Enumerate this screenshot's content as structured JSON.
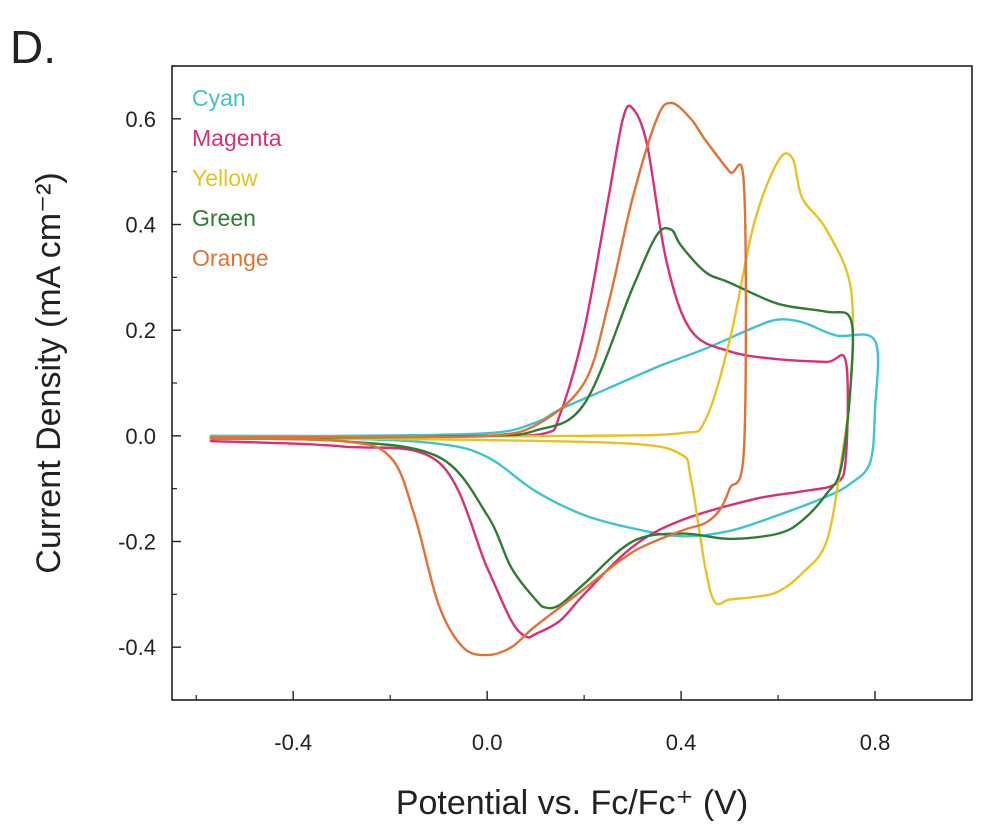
{
  "panel_label": "D.",
  "chart_data": {
    "type": "line",
    "title": "",
    "xlabel": "Potential vs. Fc/Fc⁺ (V)",
    "ylabel": "Current Density (mA cm⁻²)",
    "xlim": [
      -0.65,
      1.0
    ],
    "ylim": [
      -0.5,
      0.7
    ],
    "xticks": [
      -0.4,
      0.0,
      0.4,
      0.8
    ],
    "xtick_labels": [
      "-0.4",
      "0.0",
      "0.4",
      "0.8"
    ],
    "yticks": [
      -0.4,
      -0.2,
      0.0,
      0.2,
      0.4,
      0.6
    ],
    "ytick_labels": [
      "-0.4",
      "-0.2",
      "0.0",
      "0.2",
      "0.4",
      "0.6"
    ],
    "grid": false,
    "legend_position": "top-left",
    "series": [
      {
        "name": "Cyan",
        "color": "#3fc4cf",
        "x": [
          -0.57,
          -0.3,
          0.0,
          0.1,
          0.15,
          0.25,
          0.35,
          0.45,
          0.55,
          0.6,
          0.65,
          0.72,
          0.8,
          0.8,
          0.79,
          0.75,
          0.7,
          0.6,
          0.5,
          0.4,
          0.3,
          0.2,
          0.1,
          0.0,
          -0.1,
          -0.3,
          -0.57
        ],
        "y": [
          0.0,
          0.0,
          0.005,
          0.025,
          0.05,
          0.09,
          0.13,
          0.165,
          0.205,
          0.22,
          0.215,
          0.19,
          0.18,
          0.05,
          -0.05,
          -0.09,
          -0.115,
          -0.15,
          -0.18,
          -0.19,
          -0.175,
          -0.15,
          -0.105,
          -0.04,
          -0.015,
          -0.005,
          -0.005
        ]
      },
      {
        "name": "Magenta",
        "color": "#d6307a",
        "x": [
          -0.57,
          -0.3,
          0.0,
          0.12,
          0.15,
          0.2,
          0.25,
          0.28,
          0.3,
          0.33,
          0.37,
          0.42,
          0.5,
          0.6,
          0.7,
          0.74,
          0.74,
          0.72,
          0.65,
          0.55,
          0.4,
          0.3,
          0.2,
          0.15,
          0.1,
          0.08,
          0.05,
          0.0,
          -0.1,
          -0.3,
          -0.57
        ],
        "y": [
          -0.005,
          -0.003,
          0.0,
          0.005,
          0.04,
          0.2,
          0.45,
          0.6,
          0.62,
          0.55,
          0.33,
          0.2,
          0.16,
          0.145,
          0.14,
          0.14,
          -0.04,
          -0.09,
          -0.105,
          -0.12,
          -0.16,
          -0.21,
          -0.3,
          -0.35,
          -0.375,
          -0.38,
          -0.35,
          -0.25,
          -0.05,
          -0.02,
          -0.01
        ]
      },
      {
        "name": "Yellow",
        "color": "#e8c224",
        "x": [
          -0.57,
          -0.2,
          0.2,
          0.4,
          0.45,
          0.5,
          0.55,
          0.6,
          0.63,
          0.65,
          0.7,
          0.75,
          0.75,
          0.73,
          0.7,
          0.65,
          0.6,
          0.55,
          0.5,
          0.47,
          0.45,
          0.42,
          0.4,
          0.3,
          0.0,
          -0.3,
          -0.57
        ],
        "y": [
          -0.003,
          -0.002,
          0.0,
          0.005,
          0.03,
          0.18,
          0.4,
          0.52,
          0.525,
          0.45,
          0.39,
          0.28,
          0.1,
          -0.05,
          -0.2,
          -0.26,
          -0.295,
          -0.305,
          -0.31,
          -0.315,
          -0.25,
          -0.08,
          -0.035,
          -0.015,
          -0.008,
          -0.005,
          -0.003
        ]
      },
      {
        "name": "Green",
        "color": "#2f7d33",
        "x": [
          -0.57,
          -0.3,
          0.0,
          0.1,
          0.2,
          0.3,
          0.35,
          0.38,
          0.4,
          0.45,
          0.5,
          0.6,
          0.7,
          0.75,
          0.75,
          0.73,
          0.7,
          0.65,
          0.6,
          0.5,
          0.4,
          0.3,
          0.2,
          0.15,
          0.12,
          0.1,
          0.05,
          0.0,
          -0.1,
          -0.3,
          -0.57
        ],
        "y": [
          -0.005,
          -0.003,
          0.0,
          0.01,
          0.06,
          0.28,
          0.38,
          0.39,
          0.36,
          0.31,
          0.29,
          0.25,
          0.235,
          0.22,
          0.1,
          -0.06,
          -0.11,
          -0.16,
          -0.185,
          -0.195,
          -0.185,
          -0.2,
          -0.28,
          -0.32,
          -0.325,
          -0.31,
          -0.25,
          -0.15,
          -0.04,
          -0.01,
          -0.005
        ]
      },
      {
        "name": "Orange",
        "color": "#e07236",
        "x": [
          -0.57,
          -0.2,
          0.0,
          0.1,
          0.2,
          0.25,
          0.3,
          0.35,
          0.38,
          0.42,
          0.45,
          0.5,
          0.53,
          0.53,
          0.5,
          0.48,
          0.45,
          0.4,
          0.3,
          0.2,
          0.1,
          0.05,
          0.0,
          -0.05,
          -0.1,
          -0.15,
          -0.2,
          -0.3,
          -0.57
        ],
        "y": [
          -0.003,
          -0.002,
          0.0,
          0.02,
          0.1,
          0.25,
          0.45,
          0.6,
          0.63,
          0.6,
          0.56,
          0.5,
          0.47,
          -0.02,
          -0.1,
          -0.14,
          -0.165,
          -0.18,
          -0.22,
          -0.29,
          -0.36,
          -0.4,
          -0.415,
          -0.4,
          -0.32,
          -0.15,
          -0.04,
          -0.01,
          -0.005
        ]
      }
    ]
  }
}
